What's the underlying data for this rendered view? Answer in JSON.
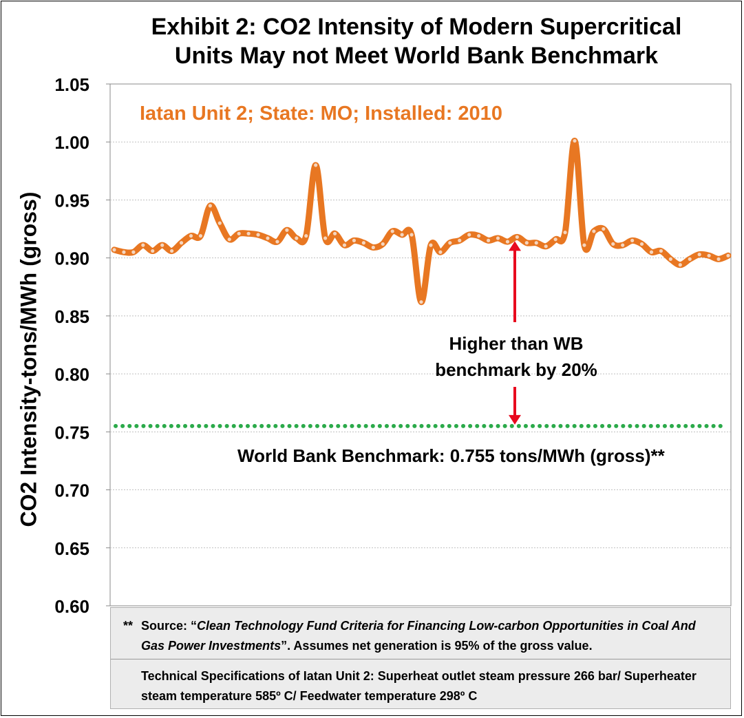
{
  "title": "Exhibit 2: CO2 Intensity of Modern Supercritical Units May not Meet World Bank Benchmark",
  "title_lines": [
    "Exhibit 2: CO2 Intensity of Modern Supercritical",
    "Units May not Meet World Bank Benchmark"
  ],
  "colors": {
    "series": "#E87722",
    "marker": "#F4D6C0",
    "benchmark": "#2BAA4A",
    "arrow": "#E8091E",
    "grid": "#BFBFBF"
  },
  "chart_data": {
    "type": "line",
    "ylabel": "CO2 Intensity-tons/MWh (gross)",
    "xlabel": "",
    "ylim": [
      0.6,
      1.05
    ],
    "yticks": [
      "0.60",
      "0.65",
      "0.70",
      "0.75",
      "0.80",
      "0.85",
      "0.90",
      "0.95",
      "1.00",
      "1.05"
    ],
    "grid": "horizontal dotted",
    "series": [
      {
        "name": "Iatan Unit 2; State: MO; Installed: 2010",
        "values": [
          0.907,
          0.905,
          0.905,
          0.911,
          0.906,
          0.911,
          0.906,
          0.913,
          0.919,
          0.919,
          0.945,
          0.93,
          0.916,
          0.921,
          0.921,
          0.92,
          0.917,
          0.914,
          0.924,
          0.917,
          0.919,
          0.98,
          0.917,
          0.921,
          0.911,
          0.915,
          0.913,
          0.909,
          0.912,
          0.923,
          0.92,
          0.92,
          0.862,
          0.911,
          0.905,
          0.913,
          0.915,
          0.92,
          0.919,
          0.915,
          0.917,
          0.914,
          0.918,
          0.913,
          0.913,
          0.91,
          0.916,
          0.922,
          1.001,
          0.911,
          0.923,
          0.925,
          0.912,
          0.911,
          0.915,
          0.912,
          0.905,
          0.906,
          0.899,
          0.894,
          0.899,
          0.903,
          0.902,
          0.899,
          0.902
        ]
      },
      {
        "name": "World Bank Benchmark",
        "constant": 0.755
      }
    ],
    "annotations": {
      "series_label": "Iatan Unit 2; State: MO; Installed: 2010",
      "arrow_text": [
        "Higher than WB",
        "benchmark by 20%"
      ],
      "benchmark_label": "World Bank Benchmark: 0.755 tons/MWh (gross)**"
    }
  },
  "notes": {
    "stars": "**",
    "source_prefix": "Source: “",
    "source_title": "Clean Technology Fund  Criteria for Financing Low-carbon Opportunities in Coal And Gas Power Investments",
    "source_suffix": "”. Assumes net generation is 95% of the gross value.",
    "tech_specs": "Technical Specifications of Iatan Unit 2: Superheat outlet steam pressure 266 bar/ Superheater steam temperature 585º C/ Feedwater temperature 298º C"
  }
}
